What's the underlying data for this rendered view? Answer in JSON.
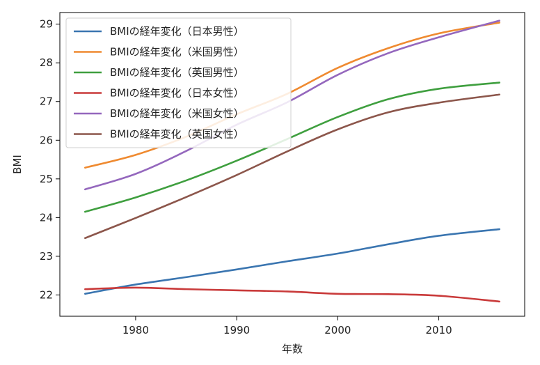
{
  "chart_data": {
    "type": "line",
    "title": "",
    "xlabel": "年数",
    "ylabel": "BMI",
    "xlim": [
      1972.5,
      2018.5
    ],
    "ylim": [
      21.45,
      29.3
    ],
    "xticks": [
      1980,
      1990,
      2000,
      2010
    ],
    "yticks": [
      22,
      23,
      24,
      25,
      26,
      27,
      28,
      29
    ],
    "grid": false,
    "legend_position": "top-left",
    "x": [
      1975,
      1980,
      1985,
      1990,
      1995,
      2000,
      2005,
      2010,
      2016
    ],
    "series": [
      {
        "name": "BMIの経年変化（日本男性）",
        "color": "#3a75b0",
        "values": [
          22.03,
          22.27,
          22.46,
          22.66,
          22.87,
          23.07,
          23.31,
          23.53,
          23.7
        ]
      },
      {
        "name": "BMIの経年変化（米国男性）",
        "color": "#ef8a30",
        "values": [
          25.29,
          25.62,
          26.09,
          26.67,
          27.2,
          27.87,
          28.38,
          28.76,
          29.04
        ]
      },
      {
        "name": "BMIの経年変化（英国男性）",
        "color": "#3f9f3f",
        "values": [
          24.15,
          24.52,
          24.96,
          25.47,
          26.03,
          26.6,
          27.06,
          27.33,
          27.49
        ]
      },
      {
        "name": "BMIの経年変化（日本女性）",
        "color": "#c93a3a",
        "values": [
          22.15,
          22.19,
          22.15,
          22.12,
          22.09,
          22.03,
          22.02,
          21.98,
          21.83
        ]
      },
      {
        "name": "BMIの経年変化（米国女性）",
        "color": "#9467bd",
        "values": [
          24.73,
          25.13,
          25.72,
          26.4,
          26.98,
          27.69,
          28.25,
          28.66,
          29.09
        ]
      },
      {
        "name": "BMIの経年変化（英国女性）",
        "color": "#8c564b",
        "values": [
          23.47,
          23.99,
          24.53,
          25.1,
          25.71,
          26.28,
          26.72,
          26.97,
          27.18
        ]
      }
    ]
  }
}
